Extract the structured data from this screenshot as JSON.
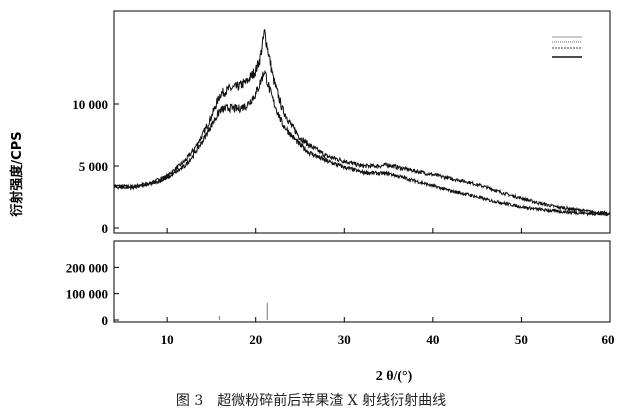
{
  "chart_data": {
    "type": "line",
    "caption": "图 3　超微粉碎前后苹果渣 X 射线衍射曲线",
    "xlabel": "2 θ/(°)",
    "ylabel": "衍射强度/CPS",
    "xlim": [
      4,
      60
    ],
    "x_ticks": [
      10,
      20,
      30,
      40,
      50,
      60
    ],
    "x_tick_labels": [
      "10",
      "20",
      "30",
      "40",
      "50",
      "60"
    ],
    "legend": "top-right",
    "legend_entries": [
      "",
      "",
      "",
      ""
    ],
    "panels": [
      {
        "name": "main",
        "ylim": [
          0,
          17500
        ],
        "y_ticks": [
          0,
          5000,
          10000
        ],
        "y_tick_labels": [
          "0",
          "5 000",
          "10 000"
        ],
        "series": [
          {
            "color": "#111111",
            "x": [
              4,
              6,
              8,
              10,
              12,
              13,
              14,
              15,
              16,
              17,
              18,
              19,
              20,
              20.5,
              21,
              21.5,
              22,
              23,
              24,
              25,
              26,
              28,
              30,
              32,
              34,
              35,
              36,
              38,
              40,
              42,
              44,
              46,
              48,
              50,
              52,
              54,
              56,
              58,
              60
            ],
            "y": [
              3400,
              3350,
              3600,
              4200,
              5400,
              6300,
              7500,
              9000,
              10800,
              11200,
              11400,
              11800,
              12700,
              13700,
              15800,
              13900,
              12000,
              9600,
              8300,
              7300,
              6700,
              5800,
              5400,
              5000,
              5000,
              5100,
              4900,
              4600,
              4300,
              4000,
              3700,
              3300,
              2800,
              2400,
              2000,
              1700,
              1500,
              1300,
              1150
            ]
          },
          {
            "color": "#111111",
            "x": [
              4,
              6,
              8,
              10,
              12,
              13,
              14,
              15,
              16,
              17,
              18,
              19,
              20,
              20.5,
              21,
              21.5,
              22,
              23,
              24,
              25,
              26,
              28,
              30,
              32,
              34,
              35,
              36,
              38,
              40,
              42,
              44,
              46,
              48,
              50,
              52,
              54,
              56,
              58,
              60
            ],
            "y": [
              3300,
              3250,
              3500,
              4000,
              5000,
              5900,
              7000,
              8300,
              9500,
              9700,
              9600,
              9900,
              10800,
              11700,
              12700,
              11300,
              10200,
              8400,
              7500,
              6700,
              6100,
              5400,
              4900,
              4500,
              4400,
              4400,
              4200,
              3800,
              3400,
              3000,
              2700,
              2300,
              2000,
              1700,
              1500,
              1350,
              1250,
              1150,
              1100
            ]
          }
        ]
      },
      {
        "name": "reference",
        "type": "bar",
        "ylim": [
          0,
          300000
        ],
        "y_ticks": [
          0,
          100000,
          200000
        ],
        "y_tick_labels": [
          "0",
          "100 000",
          "200 000"
        ],
        "x": [
          15.9,
          21.3
        ],
        "values": [
          15000,
          65000
        ]
      }
    ]
  }
}
